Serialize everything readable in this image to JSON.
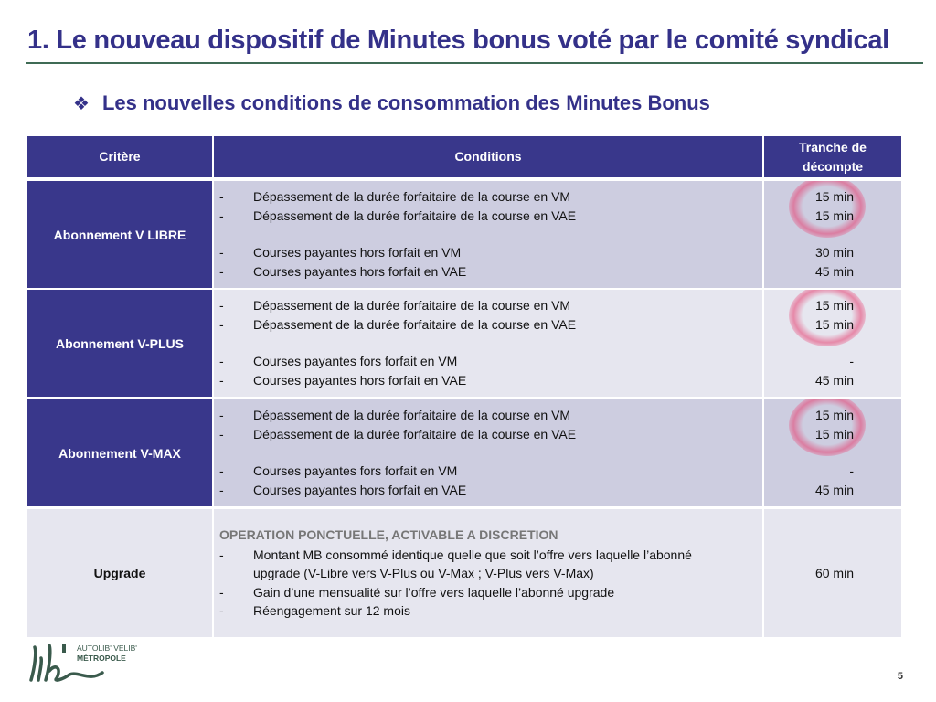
{
  "title": "1. Le nouveau dispositif de Minutes bonus voté par le comité syndical",
  "subtitle": "Les nouvelles conditions de consommation des Minutes Bonus",
  "subtitle_icon": "four-diamonds-icon",
  "table": {
    "headers": [
      "Critère",
      "Conditions",
      "Tranche de décompte"
    ],
    "rows": [
      {
        "criterion": "Abonnement V LIBRE",
        "conditions": [
          {
            "text": "Dépassement de la durée forfaitaire de la course en VM",
            "value": "15 min"
          },
          {
            "text": "Dépassement de la durée forfaitaire de la course en VAE",
            "value": "15 min"
          },
          {
            "text": "Courses payantes hors forfait en VM",
            "value": "30 min"
          },
          {
            "text": "Courses payantes hors forfait en VAE",
            "value": "45 min"
          }
        ]
      },
      {
        "criterion": "Abonnement V-PLUS",
        "conditions": [
          {
            "text": "Dépassement de la durée forfaitaire de la course en VM",
            "value": "15 min"
          },
          {
            "text": "Dépassement de la durée forfaitaire de la course en VAE",
            "value": "15 min"
          },
          {
            "text": "Courses payantes fors forfait en VM",
            "value": "-"
          },
          {
            "text": "Courses payantes hors forfait en VAE",
            "value": "45 min"
          }
        ]
      },
      {
        "criterion": "Abonnement V-MAX",
        "conditions": [
          {
            "text": "Dépassement de la durée forfaitaire de la course en VM",
            "value": "15 min"
          },
          {
            "text": "Dépassement de la durée forfaitaire de la course en VAE",
            "value": "15 min"
          },
          {
            "text": "Courses payantes fors forfait en VM",
            "value": "-"
          },
          {
            "text": "Courses payantes hors forfait en VAE",
            "value": "45 min"
          }
        ]
      }
    ],
    "upgrade": {
      "criterion": "Upgrade",
      "heading": "OPERATION PONCTUELLE, ACTIVABLE A DISCRETION",
      "items": [
        "Montant MB consommé identique quelle que soit l’offre vers laquelle l’abonné",
        "upgrade (V-Libre vers V-Plus ou V-Max ; V-Plus vers V-Max)",
        "Gain d’une mensualité sur l’offre vers laquelle l’abonné upgrade",
        "Réengagement sur 12 mois"
      ],
      "value": "60 min"
    }
  },
  "dash": "-",
  "logo": {
    "script": "lib'",
    "line1": "AUTOLIB' VELIB'",
    "line2": "MÉTROPOLE"
  },
  "page_number": "5",
  "colors": {
    "primary": "#39378b",
    "rule": "#3f6b55",
    "highlight": "#e63c6e"
  }
}
